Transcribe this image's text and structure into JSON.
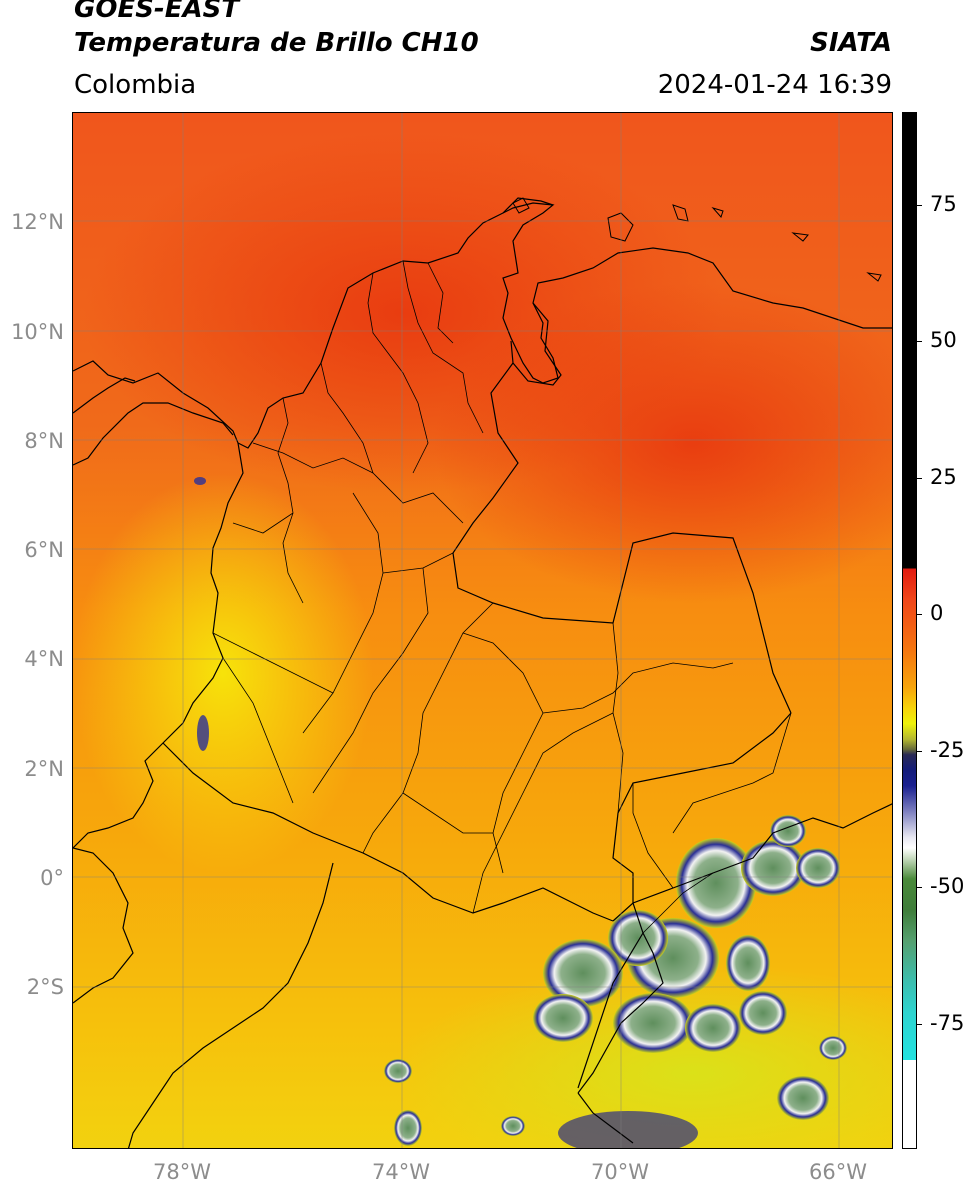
{
  "header": {
    "satellite": "GOES-EAST",
    "product": "Temperatura de Brillo CH10",
    "agency": "SIATA",
    "region": "Colombia",
    "datetime": "2024-01-24 16:39"
  },
  "map": {
    "extent": {
      "lon_min": -80,
      "lon_max": -65,
      "lat_min": -5,
      "lat_max": 14
    },
    "lat_ticks": [
      {
        "value": 12,
        "label": "12°N"
      },
      {
        "value": 10,
        "label": "10°N"
      },
      {
        "value": 8,
        "label": "8°N"
      },
      {
        "value": 6,
        "label": "6°N"
      },
      {
        "value": 4,
        "label": "4°N"
      },
      {
        "value": 2,
        "label": "2°N"
      },
      {
        "value": 0,
        "label": "0°"
      },
      {
        "value": -2,
        "label": "2°S"
      }
    ],
    "lon_ticks": [
      {
        "value": -78,
        "label": "78°W"
      },
      {
        "value": -74,
        "label": "74°W"
      },
      {
        "value": -70,
        "label": "70°W"
      },
      {
        "value": -66,
        "label": "66°W"
      }
    ],
    "grid": true,
    "colors": {
      "warm_north": "#ef4a17",
      "mid": "#f79a0c",
      "south": "#f4c20a",
      "cold_cloud_blue": "#1c1f8c",
      "cold_cloud_green": "#6d9a6a"
    }
  },
  "colorbar": {
    "range": [
      -95,
      90
    ],
    "ticks": [
      {
        "value": 75,
        "label": "75"
      },
      {
        "value": 50,
        "label": "50"
      },
      {
        "value": 25,
        "label": "25"
      },
      {
        "value": 0,
        "label": "0"
      },
      {
        "value": -25,
        "label": "-25"
      },
      {
        "value": -50,
        "label": "-50"
      },
      {
        "value": -75,
        "label": "-75"
      }
    ]
  }
}
